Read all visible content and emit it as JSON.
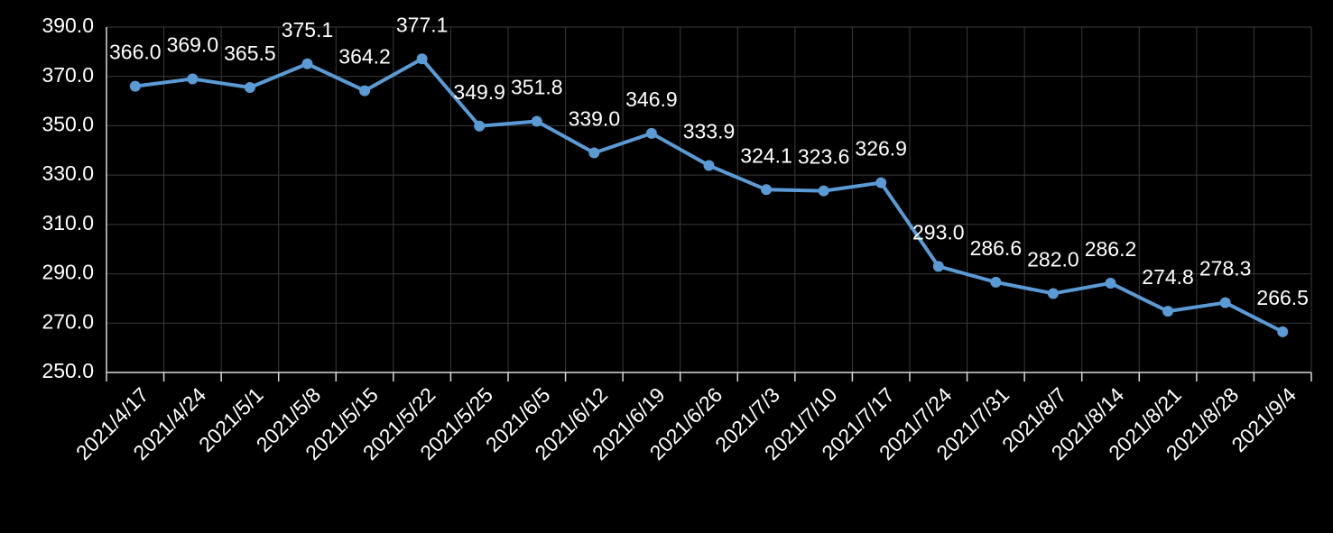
{
  "chart_data": {
    "type": "line",
    "categories": [
      "2021/4/17",
      "2021/4/24",
      "2021/5/1",
      "2021/5/8",
      "2021/5/15",
      "2021/5/22",
      "2021/5/25",
      "2021/6/5",
      "2021/6/12",
      "2021/6/19",
      "2021/6/26",
      "2021/7/3",
      "2021/7/10",
      "2021/7/17",
      "2021/7/24",
      "2021/7/31",
      "2021/8/7",
      "2021/8/14",
      "2021/8/21",
      "2021/8/28",
      "2021/9/4"
    ],
    "values": [
      366.0,
      369.0,
      365.5,
      375.1,
      364.2,
      377.1,
      349.9,
      351.8,
      339.0,
      346.9,
      333.9,
      324.1,
      323.6,
      326.9,
      293.0,
      286.6,
      282.0,
      286.2,
      274.8,
      278.3,
      266.5
    ],
    "value_labels": [
      "366.0",
      "369.0",
      "365.5",
      "375.1",
      "364.2",
      "377.1",
      "349.9",
      "351.8",
      "339.0",
      "346.9",
      "333.9",
      "324.1",
      "323.6",
      "326.9",
      "293.0",
      "286.6",
      "282.0",
      "286.2",
      "274.8",
      "278.3",
      "266.5"
    ],
    "color": "#5b9bd5",
    "ylim": [
      250,
      390
    ],
    "yticks": [
      {
        "value": 250,
        "label": "250.0"
      },
      {
        "value": 270,
        "label": "270.0"
      },
      {
        "value": 290,
        "label": "290.0"
      },
      {
        "value": 310,
        "label": "310.0"
      },
      {
        "value": 330,
        "label": "330.0"
      },
      {
        "value": 350,
        "label": "350.0"
      },
      {
        "value": 370,
        "label": "370.0"
      },
      {
        "value": 390,
        "label": "390.0"
      }
    ],
    "grid": true
  }
}
